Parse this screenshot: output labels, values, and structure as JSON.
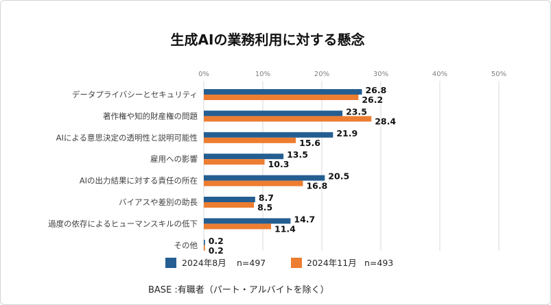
{
  "chart_data": {
    "type": "bar",
    "horizontal": true,
    "title": "生成AIの業務利用に対する懸念",
    "categories": [
      "データプライバシーとセキュリティ",
      "著作権や知的財産権の問題",
      "AIによる意思決定の透明性と説明可能性",
      "雇用への影響",
      "AIの出力結果に対する責任の所在",
      "バイアスや差別の助長",
      "過度の依存によるヒューマンスキルの低下",
      "その他"
    ],
    "series": [
      {
        "name": "2024年8月",
        "n_label": "n=497",
        "color": "#255E91",
        "values": [
          26.8,
          23.5,
          21.9,
          13.5,
          20.5,
          8.7,
          14.7,
          0.2
        ]
      },
      {
        "name": "2024年11月",
        "n_label": "n=493",
        "color": "#ED7D31",
        "values": [
          26.2,
          28.4,
          15.6,
          10.3,
          16.8,
          8.5,
          11.4,
          0.2
        ]
      }
    ],
    "x_ticks": [
      0,
      10,
      20,
      30,
      40,
      50
    ],
    "x_tick_labels": [
      "0%",
      "10%",
      "20%",
      "30%",
      "40%",
      "50%"
    ],
    "xlim": [
      0,
      50
    ],
    "xlabel": "",
    "ylabel": "",
    "grid": true,
    "legend_position": "bottom"
  },
  "footer": "BASE :有職者（パート・アルバイトを除く）"
}
